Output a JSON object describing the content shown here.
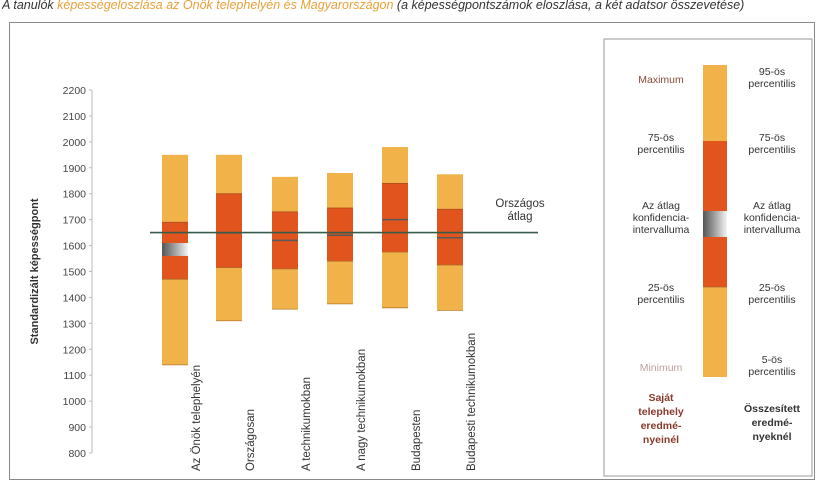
{
  "caption": {
    "prefix": "A tanulók ",
    "highlight": "képességeloszlása az Önök telephelyén és Magyarországon",
    "rest": " (a képességpontszámok eloszlása, a két adatsor összevetése)"
  },
  "colors": {
    "outer": "#f2b24a",
    "inner": "#e2541e",
    "ci_dark": "#5a5a5a",
    "ci_light": "#f4f4f4",
    "avg_line": "#355c4a"
  },
  "chart_data": {
    "type": "bar",
    "title": "",
    "ylabel": "Standardizált képességpont",
    "xlabel": "",
    "ylim": [
      800,
      2200
    ],
    "yticks": [
      800,
      900,
      1000,
      1100,
      1200,
      1300,
      1400,
      1500,
      1600,
      1700,
      1800,
      1900,
      2000,
      2100,
      2200
    ],
    "categories": [
      "Az Önök telephelyén",
      "Országosan",
      "A technikumokban",
      "A nagy technikumokban",
      "Budapesten",
      "Budapesti technikumokban"
    ],
    "series": [
      {
        "name": "",
        "low": 1140,
        "p25": 1470,
        "p75": 1690,
        "high": 1950,
        "mean": 1585,
        "ci_low": 1560,
        "ci_high": 1610
      },
      {
        "name": "",
        "low": 1310,
        "p25": 1515,
        "p75": 1800,
        "high": 1950,
        "mean": 1650,
        "ci_low": 1648,
        "ci_high": 1652
      },
      {
        "name": "",
        "low": 1355,
        "p25": 1510,
        "p75": 1730,
        "high": 1865,
        "mean": 1620,
        "ci_low": 1617,
        "ci_high": 1623
      },
      {
        "name": "",
        "low": 1375,
        "p25": 1540,
        "p75": 1745,
        "high": 1880,
        "mean": 1640,
        "ci_low": 1637,
        "ci_high": 1643
      },
      {
        "name": "",
        "low": 1360,
        "p25": 1575,
        "p75": 1840,
        "high": 1980,
        "mean": 1700,
        "ci_low": 1697,
        "ci_high": 1703
      },
      {
        "name": "",
        "low": 1350,
        "p25": 1525,
        "p75": 1740,
        "high": 1875,
        "mean": 1630,
        "ci_low": 1627,
        "ci_high": 1633
      }
    ],
    "reference_line": {
      "value": 1650,
      "label_lines": [
        "Országos",
        "átlag"
      ]
    }
  },
  "legend": {
    "left_labels": [
      {
        "lines": [
          "Maximum"
        ]
      },
      {
        "lines": [
          "75-ös",
          "percentilis"
        ]
      },
      {
        "lines": [
          "Az átlag",
          "konfidencia-",
          "intervalluma"
        ]
      },
      {
        "lines": [
          "25-ös",
          "percentilis"
        ]
      },
      {
        "lines": [
          "Minimum"
        ]
      }
    ],
    "right_labels": [
      {
        "lines": [
          "95-ös",
          "percentilis"
        ]
      },
      {
        "lines": [
          "75-ös",
          "percentilis"
        ]
      },
      {
        "lines": [
          "Az átlag",
          "konfidencia-",
          "intervalluma"
        ]
      },
      {
        "lines": [
          "25-ös",
          "percentilis"
        ]
      },
      {
        "lines": [
          "5-ös",
          "percentilis"
        ]
      }
    ],
    "left_footer": [
      "Saját",
      "telephely",
      "eredmé-",
      "nyeinél"
    ],
    "right_footer": [
      "Összesített",
      "eredmé-",
      "nyeknél"
    ]
  }
}
